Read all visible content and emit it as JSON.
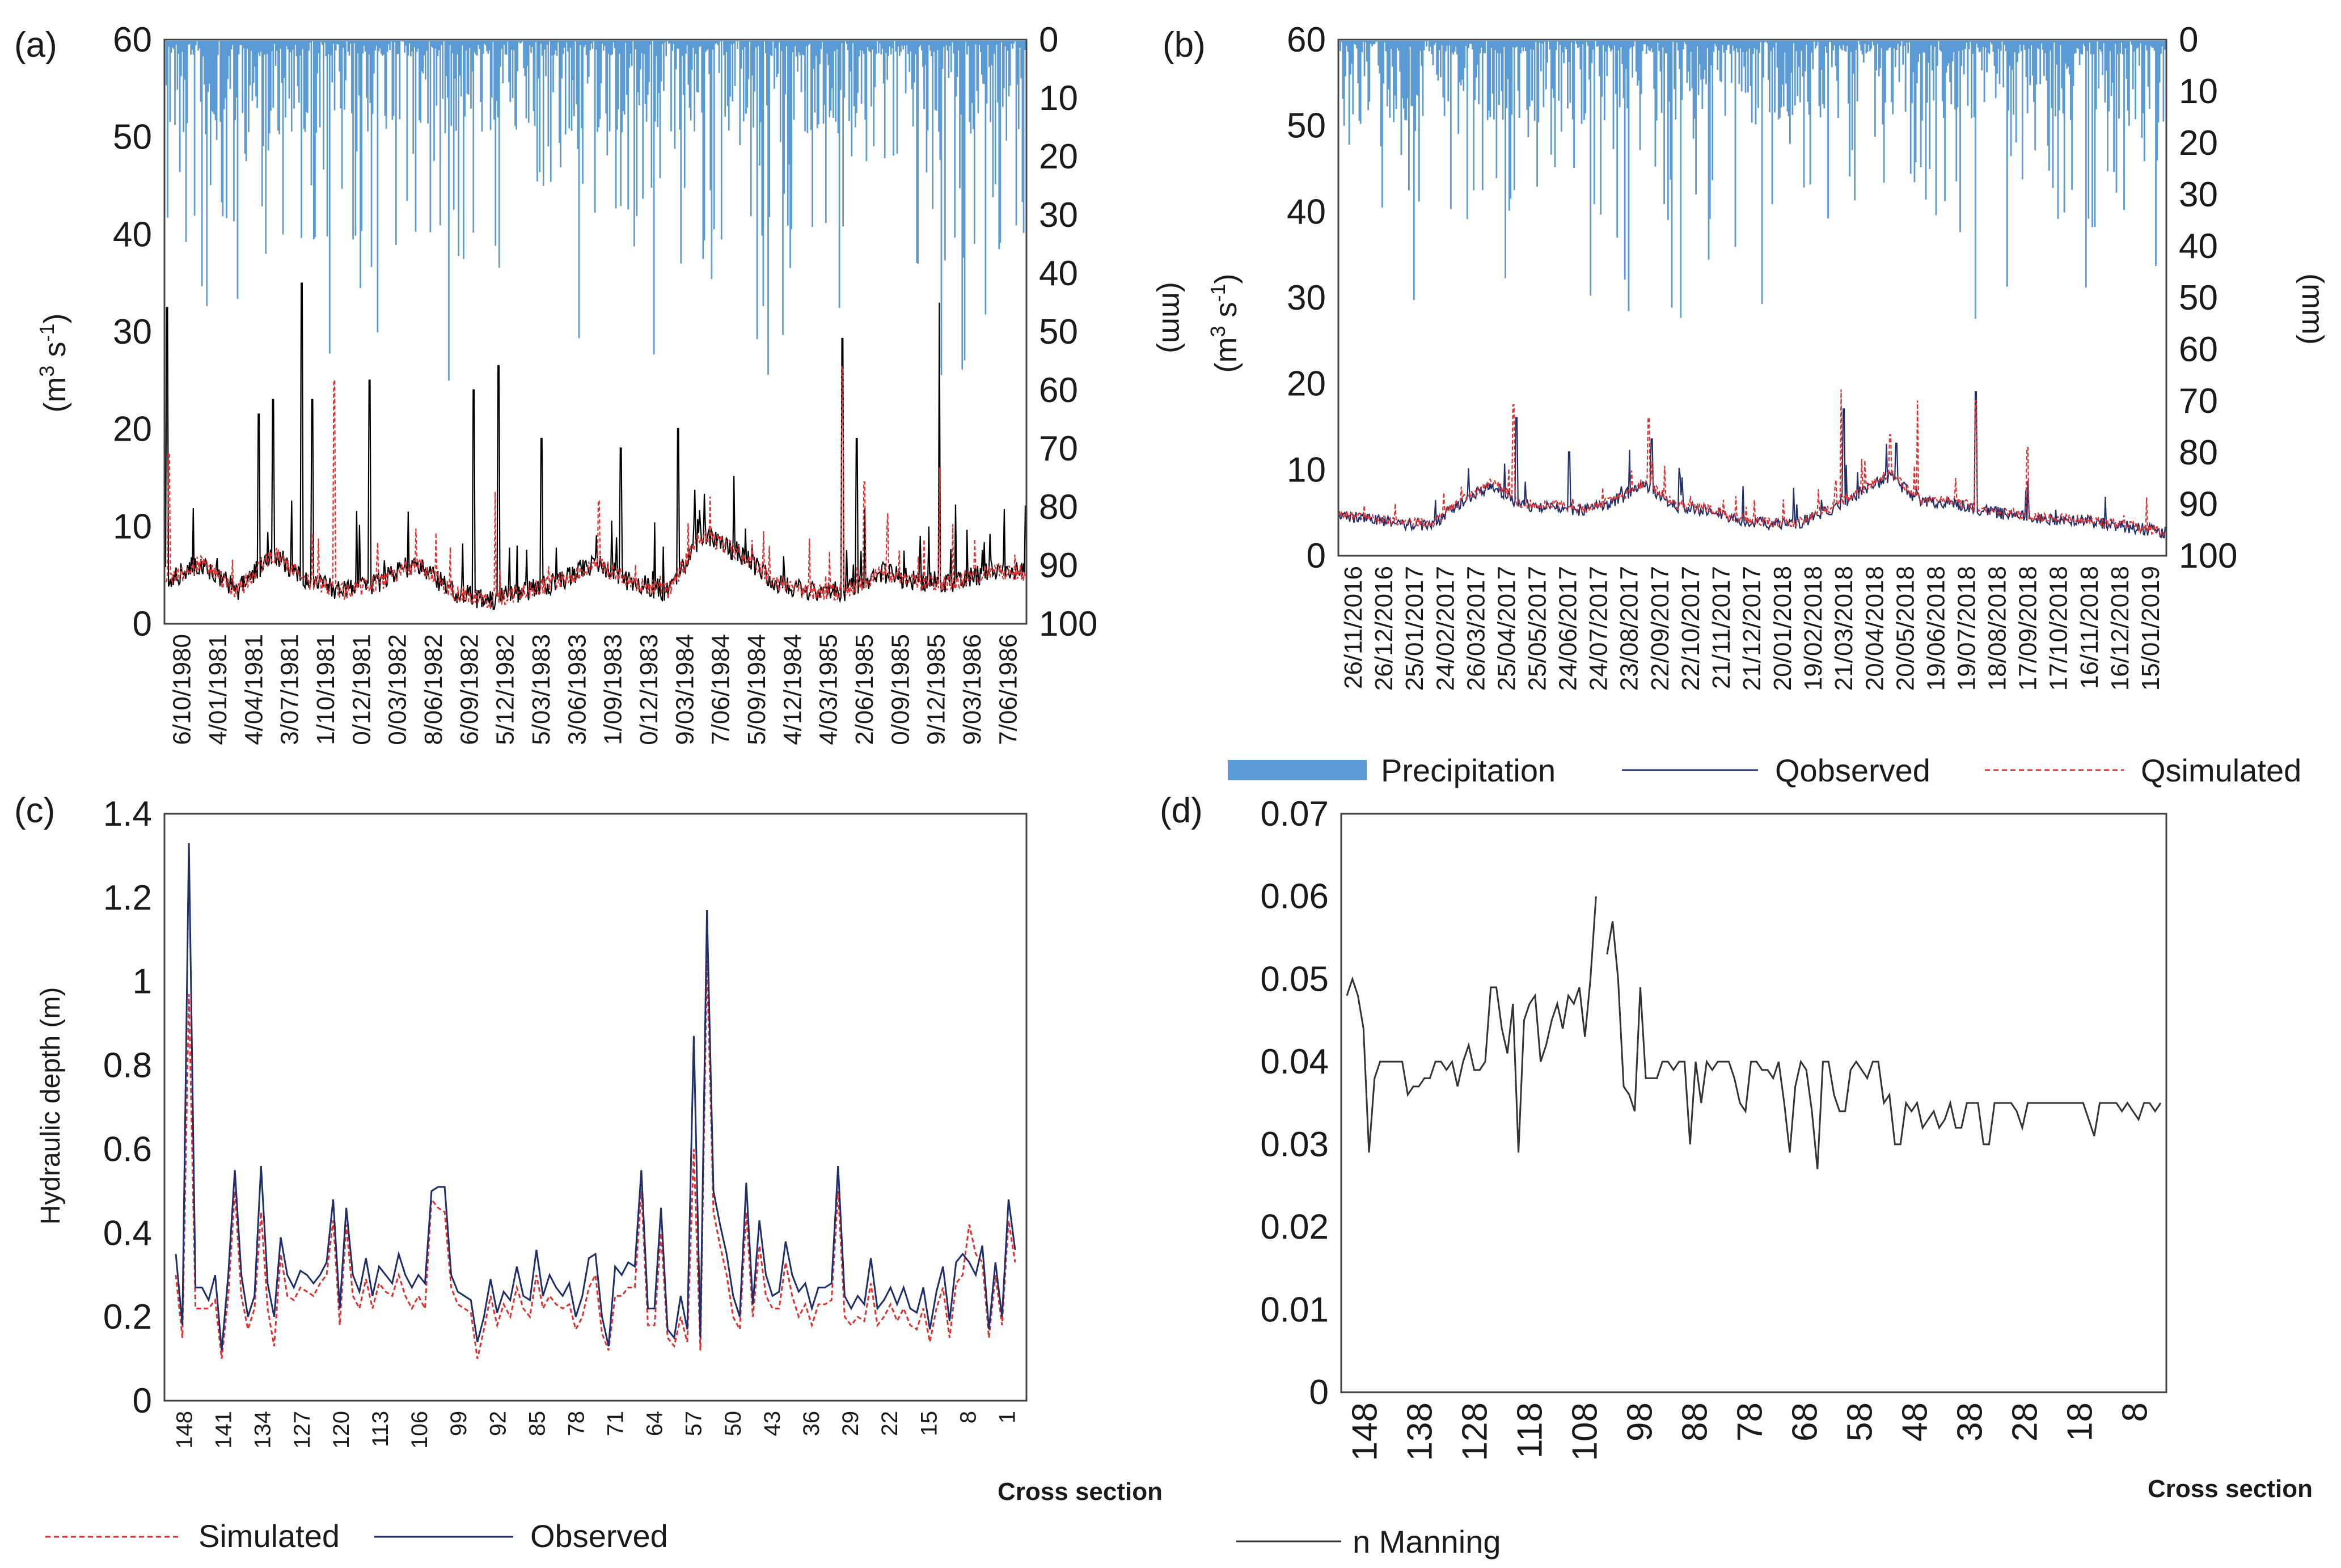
{
  "panels": {
    "a": "(a)",
    "b": "(b)",
    "c": "(c)",
    "d": "(d)"
  },
  "colors": {
    "precipitation": "#5b9bd5",
    "observed_a": "#000000",
    "observed": "#1f2f6b",
    "simulated": "#e03030",
    "manning": "#333333"
  },
  "legend_ab": {
    "precipitation": "Precipitation",
    "observed": "Qobserved",
    "simulated": "Qsimulated"
  },
  "legend_c": {
    "simulated": "Simulated",
    "observed": "Observed"
  },
  "legend_d": {
    "manning": "n Manning"
  },
  "chart_data": [
    {
      "id": "a",
      "type": "line",
      "ylabel": "(m3 s-1)",
      "y2label": "(mm)",
      "ylim": [
        0,
        60
      ],
      "y2lim": [
        100,
        0
      ],
      "yticks": [
        "0",
        "10",
        "20",
        "30",
        "40",
        "50",
        "60"
      ],
      "y2ticks": [
        "100",
        "90",
        "80",
        "70",
        "60",
        "50",
        "40",
        "30",
        "20",
        "10",
        "0"
      ],
      "x_ticks": [
        "6/10/1980",
        "4/01/1981",
        "4/04/1981",
        "3/07/1981",
        "1/10/1981",
        "0/12/1981",
        "0/03/1982",
        "8/06/1982",
        "6/09/1982",
        "5/12/1982",
        "5/03/1983",
        "3/06/1983",
        "1/09/1983",
        "0/12/1983",
        "9/03/1984",
        "7/06/1984",
        "5/09/1984",
        "4/12/1984",
        "4/03/1985",
        "2/06/1985",
        "0/09/1985",
        "9/12/1985",
        "9/03/1986",
        "7/06/1986"
      ],
      "observed_keypoints": [
        [
          0,
          4
        ],
        [
          1,
          6
        ],
        [
          2,
          3
        ],
        [
          3,
          7
        ],
        [
          4,
          4
        ],
        [
          5,
          3
        ],
        [
          6,
          4
        ],
        [
          7,
          6
        ],
        [
          8,
          3
        ],
        [
          9,
          2
        ],
        [
          10,
          3
        ],
        [
          11,
          4
        ],
        [
          12,
          6
        ],
        [
          13,
          4
        ],
        [
          14,
          3
        ],
        [
          15,
          9
        ],
        [
          16,
          7
        ],
        [
          17,
          4
        ],
        [
          18,
          3
        ],
        [
          19,
          3
        ],
        [
          20,
          5
        ],
        [
          21,
          4
        ],
        [
          22,
          4
        ],
        [
          23,
          5
        ]
      ],
      "observed_peaks": [
        [
          0.05,
          32.5
        ],
        [
          2.6,
          21.5
        ],
        [
          3.0,
          23
        ],
        [
          3.8,
          35
        ],
        [
          4.1,
          23
        ],
        [
          5.7,
          25
        ],
        [
          8.6,
          24
        ],
        [
          9.3,
          26.5
        ],
        [
          10.5,
          19
        ],
        [
          12.7,
          18
        ],
        [
          14.3,
          20
        ],
        [
          18.9,
          29.3
        ],
        [
          19.3,
          19
        ],
        [
          21.6,
          33
        ]
      ],
      "simulated_peaks": [
        [
          0.1,
          17.5
        ],
        [
          4.7,
          25
        ],
        [
          9.2,
          13.5
        ],
        [
          12.1,
          12.6
        ],
        [
          15.2,
          13
        ],
        [
          18.9,
          26.4
        ],
        [
          19.5,
          14.5
        ],
        [
          21.6,
          16
        ],
        [
          24.3,
          16
        ],
        [
          25.5,
          15
        ]
      ]
    },
    {
      "id": "b",
      "type": "line",
      "ylabel": "(m3 s-1)",
      "y2label": "(mm)",
      "ylim": [
        0,
        60
      ],
      "y2lim": [
        100,
        0
      ],
      "yticks": [
        "0",
        "10",
        "20",
        "30",
        "40",
        "50",
        "60"
      ],
      "y2ticks": [
        "100",
        "90",
        "80",
        "70",
        "60",
        "50",
        "40",
        "30",
        "20",
        "10",
        "0"
      ],
      "x_ticks": [
        "26/11/2016",
        "26/12/2016",
        "25/01/2017",
        "24/02/2017",
        "26/03/2017",
        "25/04/2017",
        "25/05/2017",
        "24/06/2017",
        "24/07/2017",
        "23/08/2017",
        "22/09/2017",
        "22/10/2017",
        "21/11/2017",
        "21/12/2017",
        "20/01/2018",
        "19/02/2018",
        "21/03/2018",
        "20/04/2018",
        "20/05/2018",
        "19/06/2018",
        "19/07/2018",
        "18/08/2018",
        "17/09/2018",
        "17/10/2018",
        "16/11/2018",
        "16/12/2018",
        "15/01/2019"
      ],
      "observed_keypoints": [
        [
          0,
          4.5
        ],
        [
          2,
          3.5
        ],
        [
          3,
          3.3
        ],
        [
          4,
          6
        ],
        [
          5,
          8
        ],
        [
          6,
          5.5
        ],
        [
          7,
          5.5
        ],
        [
          8,
          5
        ],
        [
          9,
          6
        ],
        [
          10,
          8
        ],
        [
          11,
          5.5
        ],
        [
          12,
          5
        ],
        [
          13,
          4
        ],
        [
          14,
          3.5
        ],
        [
          15,
          3.5
        ],
        [
          16,
          5
        ],
        [
          17,
          7
        ],
        [
          18,
          9
        ],
        [
          19,
          6
        ],
        [
          20,
          6
        ],
        [
          21,
          5
        ],
        [
          22,
          4.5
        ],
        [
          23,
          4
        ],
        [
          24,
          4
        ],
        [
          25,
          3.5
        ],
        [
          26,
          3
        ],
        [
          27,
          2.5
        ]
      ],
      "observed_peaks": [
        [
          5.8,
          16
        ],
        [
          7.5,
          12
        ],
        [
          10.2,
          13.5
        ],
        [
          16.5,
          17
        ],
        [
          18.2,
          13
        ],
        [
          20.8,
          19
        ]
      ],
      "simulated_peaks": [
        [
          5.7,
          17.5
        ],
        [
          10.1,
          16
        ],
        [
          16.4,
          19.3
        ],
        [
          18.0,
          14
        ],
        [
          18.9,
          18
        ],
        [
          20.8,
          18
        ],
        [
          22.5,
          12.5
        ]
      ]
    },
    {
      "id": "c",
      "type": "line",
      "xlabel": "Cross section",
      "ylabel": "Hydraulic depth (m)",
      "ylim": [
        0,
        1.4
      ],
      "yticks": [
        "0",
        "0.2",
        "0.4",
        "0.6",
        "0.8",
        "1",
        "1.2",
        "1.4"
      ],
      "x_ticks": [
        "148",
        "141",
        "134",
        "127",
        "120",
        "113",
        "106",
        "99",
        "92",
        "85",
        "78",
        "71",
        "64",
        "57",
        "50",
        "43",
        "36",
        "29",
        "22",
        "15",
        "8",
        "1"
      ],
      "series": [
        {
          "name": "Observed",
          "values": [
            0.35,
            0.18,
            1.33,
            0.27,
            0.27,
            0.24,
            0.3,
            0.12,
            0.3,
            0.55,
            0.3,
            0.2,
            0.25,
            0.56,
            0.28,
            0.2,
            0.39,
            0.3,
            0.27,
            0.31,
            0.3,
            0.28,
            0.3,
            0.33,
            0.48,
            0.22,
            0.46,
            0.3,
            0.26,
            0.34,
            0.25,
            0.32,
            0.3,
            0.28,
            0.35,
            0.3,
            0.27,
            0.3,
            0.28,
            0.5,
            0.51,
            0.51,
            0.3,
            0.26,
            0.25,
            0.24,
            0.14,
            0.2,
            0.29,
            0.21,
            0.26,
            0.24,
            0.32,
            0.25,
            0.24,
            0.36,
            0.25,
            0.3,
            0.27,
            0.25,
            0.28,
            0.2,
            0.25,
            0.34,
            0.35,
            0.2,
            0.13,
            0.32,
            0.3,
            0.33,
            0.32,
            0.55,
            0.22,
            0.22,
            0.46,
            0.17,
            0.15,
            0.25,
            0.17,
            0.87,
            0.15,
            1.17,
            0.5,
            0.42,
            0.35,
            0.25,
            0.2,
            0.52,
            0.23,
            0.43,
            0.3,
            0.25,
            0.26,
            0.38,
            0.3,
            0.26,
            0.28,
            0.22,
            0.27,
            0.27,
            0.28,
            0.56,
            0.25,
            0.22,
            0.25,
            0.23,
            0.34,
            0.22,
            0.24,
            0.27,
            0.23,
            0.27,
            0.22,
            0.21,
            0.27,
            0.17,
            0.26,
            0.32,
            0.19,
            0.33,
            0.35,
            0.33,
            0.3,
            0.37,
            0.17,
            0.33,
            0.2,
            0.48,
            0.36
          ]
        },
        {
          "name": "Simulated",
          "values": [
            0.3,
            0.15,
            0.97,
            0.22,
            0.22,
            0.22,
            0.24,
            0.1,
            0.25,
            0.5,
            0.25,
            0.17,
            0.22,
            0.45,
            0.22,
            0.13,
            0.35,
            0.25,
            0.24,
            0.27,
            0.26,
            0.25,
            0.28,
            0.3,
            0.43,
            0.18,
            0.42,
            0.25,
            0.22,
            0.29,
            0.22,
            0.28,
            0.26,
            0.25,
            0.3,
            0.25,
            0.22,
            0.25,
            0.22,
            0.48,
            0.46,
            0.45,
            0.27,
            0.23,
            0.22,
            0.21,
            0.1,
            0.17,
            0.25,
            0.18,
            0.23,
            0.2,
            0.27,
            0.22,
            0.2,
            0.3,
            0.22,
            0.25,
            0.23,
            0.22,
            0.23,
            0.17,
            0.2,
            0.27,
            0.3,
            0.16,
            0.12,
            0.25,
            0.25,
            0.27,
            0.27,
            0.5,
            0.18,
            0.18,
            0.4,
            0.15,
            0.13,
            0.2,
            0.14,
            0.6,
            0.12,
            1.05,
            0.45,
            0.37,
            0.3,
            0.2,
            0.17,
            0.45,
            0.2,
            0.37,
            0.25,
            0.22,
            0.22,
            0.33,
            0.25,
            0.2,
            0.23,
            0.18,
            0.23,
            0.23,
            0.24,
            0.5,
            0.2,
            0.18,
            0.2,
            0.19,
            0.28,
            0.18,
            0.2,
            0.23,
            0.19,
            0.22,
            0.18,
            0.17,
            0.22,
            0.14,
            0.22,
            0.27,
            0.15,
            0.28,
            0.3,
            0.42,
            0.35,
            0.33,
            0.15,
            0.3,
            0.18,
            0.43,
            0.33
          ]
        }
      ]
    },
    {
      "id": "d",
      "type": "line",
      "xlabel": "Cross section",
      "ylim": [
        0,
        0.07
      ],
      "yticks": [
        "0",
        "0.01",
        "0.02",
        "0.03",
        "0.04",
        "0.05",
        "0.06",
        "0.07"
      ],
      "x_ticks": [
        "148",
        "138",
        "128",
        "118",
        "108",
        "98",
        "88",
        "78",
        "68",
        "58",
        "48",
        "38",
        "28",
        "18",
        "8"
      ],
      "series": [
        {
          "name": "n Manning",
          "values": [
            0.048,
            0.05,
            0.048,
            0.044,
            0.029,
            0.038,
            0.04,
            0.04,
            0.04,
            0.04,
            0.04,
            0.036,
            0.037,
            0.037,
            0.038,
            0.038,
            0.04,
            0.04,
            0.039,
            0.04,
            0.037,
            0.04,
            0.042,
            0.039,
            0.039,
            0.04,
            0.049,
            0.049,
            0.044,
            0.041,
            0.047,
            0.029,
            0.045,
            0.047,
            0.048,
            0.04,
            0.042,
            0.045,
            0.047,
            0.044,
            0.048,
            0.047,
            0.049,
            0.043,
            0.05,
            0.06,
            null,
            0.053,
            0.057,
            0.05,
            0.037,
            0.036,
            0.034,
            0.049,
            0.038,
            0.038,
            0.038,
            0.04,
            0.04,
            0.039,
            0.04,
            0.04,
            0.03,
            0.04,
            0.035,
            0.04,
            0.039,
            0.04,
            0.04,
            0.04,
            0.038,
            0.035,
            0.034,
            0.04,
            0.04,
            0.039,
            0.039,
            0.038,
            0.04,
            0.035,
            0.029,
            0.037,
            0.04,
            0.039,
            0.034,
            0.027,
            0.04,
            0.04,
            0.036,
            0.034,
            0.034,
            0.039,
            0.04,
            0.039,
            0.038,
            0.04,
            0.04,
            0.035,
            0.036,
            0.03,
            0.03,
            0.035,
            0.034,
            0.035,
            0.032,
            0.033,
            0.034,
            0.032,
            0.033,
            0.035,
            0.032,
            0.032,
            0.035,
            0.035,
            0.035,
            0.03,
            0.03,
            0.035,
            0.035,
            0.035,
            0.035,
            0.034,
            0.032,
            0.035,
            0.035,
            0.035,
            0.035,
            0.035,
            0.035,
            0.035,
            0.035,
            0.035,
            0.035,
            0.035,
            0.033,
            0.031,
            0.035,
            0.035,
            0.035,
            0.035,
            0.034,
            0.035,
            0.034,
            0.033,
            0.035,
            0.035,
            0.034,
            0.035
          ]
        }
      ]
    }
  ]
}
